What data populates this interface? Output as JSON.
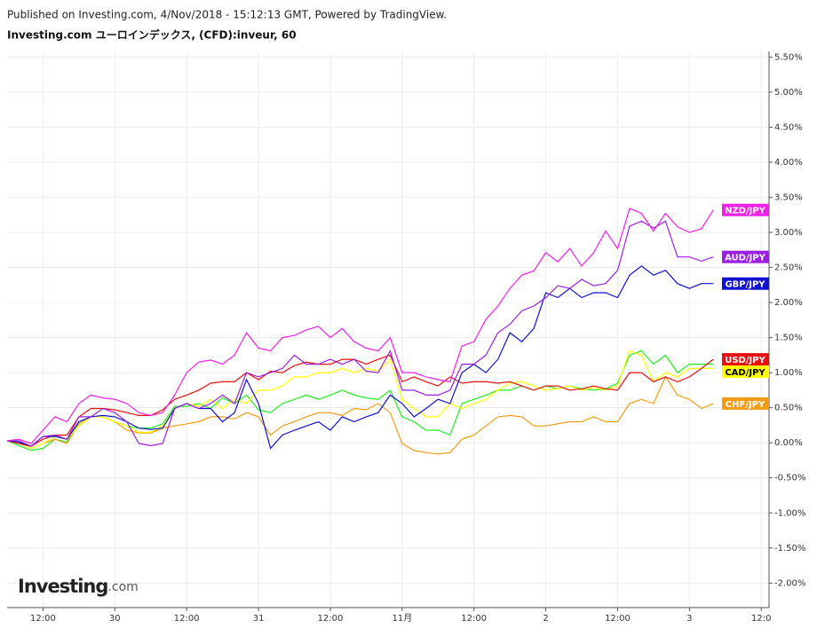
{
  "header": "Published on Investing.com, 4/Nov/2018 - 15:12:13 GMT, Powered by TradingView.",
  "logo": {
    "name": "Investing",
    "suffix": ".com"
  },
  "chart_data": {
    "type": "line",
    "title": "Investing.com ユーロインデックス, (CFD):inveur, 60",
    "x": [
      0,
      2,
      4,
      6,
      8,
      10,
      12,
      14,
      16,
      18,
      20,
      22,
      24,
      26,
      28,
      30,
      32,
      34,
      36,
      38,
      40,
      42,
      44,
      46,
      48,
      50,
      52,
      54,
      56,
      58,
      60,
      62,
      64,
      66,
      68,
      70,
      72,
      74,
      76,
      78,
      80,
      82,
      84,
      86,
      88,
      90,
      92,
      94,
      96,
      98,
      100,
      102,
      104,
      106,
      108,
      110,
      112,
      114,
      116,
      118
    ],
    "xlim": [
      0,
      127.3
    ],
    "xticks": [
      {
        "value": 6,
        "label": "12:00"
      },
      {
        "value": 18,
        "label": "30"
      },
      {
        "value": 30,
        "label": "12:00"
      },
      {
        "value": 42,
        "label": "31"
      },
      {
        "value": 54,
        "label": "12:00"
      },
      {
        "value": 66,
        "label": "11月"
      },
      {
        "value": 78,
        "label": "12:00"
      },
      {
        "value": 90,
        "label": "2"
      },
      {
        "value": 102,
        "label": "12:00"
      },
      {
        "value": 114,
        "label": "3"
      },
      {
        "value": 126,
        "label": "12:0"
      }
    ],
    "ylim": [
      -2.35,
      5.58
    ],
    "yticks": [
      {
        "value": 5.5,
        "label": "5.50%"
      },
      {
        "value": 5.0,
        "label": "5.00%"
      },
      {
        "value": 4.5,
        "label": "4.50%"
      },
      {
        "value": 4.0,
        "label": "4.00%"
      },
      {
        "value": 3.5,
        "label": "3.50%"
      },
      {
        "value": 3.0,
        "label": "3.00%"
      },
      {
        "value": 2.5,
        "label": "2.50%"
      },
      {
        "value": 2.0,
        "label": "2.00%"
      },
      {
        "value": 1.5,
        "label": "1.50%"
      },
      {
        "value": 1.0,
        "label": "1.00%"
      },
      {
        "value": 0.5,
        "label": "0.50%"
      },
      {
        "value": 0,
        "label": "0.00%"
      },
      {
        "value": -0.5,
        "label": "-0.50%"
      },
      {
        "value": -1.0,
        "label": "-1.00%"
      },
      {
        "value": -1.5,
        "label": "-1.50%"
      },
      {
        "value": -2.0,
        "label": "-2.00%"
      }
    ],
    "grid": true,
    "series": [
      {
        "color": "#22ee22",
        "values": [
          0.03,
          -0.04,
          -0.11,
          -0.08,
          0.05,
          0.01,
          0.3,
          0.37,
          0.37,
          0.3,
          0.24,
          0.21,
          0.21,
          0.27,
          0.52,
          0.52,
          0.56,
          0.49,
          0.64,
          0.56,
          0.68,
          0.47,
          0.43,
          0.56,
          0.62,
          0.68,
          0.62,
          0.68,
          0.75,
          0.68,
          0.64,
          0.62,
          0.75,
          0.37,
          0.3,
          0.18,
          0.18,
          0.11,
          0.56,
          0.62,
          0.68,
          0.75,
          0.75,
          0.81,
          0.75,
          0.81,
          0.77,
          0.81,
          0.77,
          0.75,
          0.77,
          0.85,
          1.25,
          1.31,
          1.12,
          1.25,
          1.0,
          1.12,
          1.12,
          1.12
        ]
      },
      {
        "name": "CHF/JPY",
        "color": "#f39c12",
        "values": [
          0.03,
          -0.01,
          -0.08,
          -0.01,
          0.05,
          -0.01,
          0.27,
          0.37,
          0.37,
          0.3,
          0.18,
          0.14,
          0.14,
          0.21,
          0.24,
          0.27,
          0.3,
          0.37,
          0.37,
          0.34,
          0.43,
          0.37,
          0.11,
          0.24,
          0.3,
          0.37,
          0.43,
          0.43,
          0.39,
          0.49,
          0.47,
          0.56,
          0.43,
          -0.01,
          -0.11,
          -0.14,
          -0.16,
          -0.14,
          0.05,
          0.11,
          0.24,
          0.37,
          0.39,
          0.37,
          0.24,
          0.24,
          0.27,
          0.3,
          0.3,
          0.37,
          0.3,
          0.3,
          0.56,
          0.62,
          0.56,
          0.94,
          0.68,
          0.62,
          0.49,
          0.56
        ]
      },
      {
        "name": "CAD/JPY",
        "color": "#ffff00",
        "values": [
          0.03,
          -0.01,
          -0.08,
          -0.01,
          0.09,
          0.05,
          0.24,
          0.37,
          0.37,
          0.3,
          0.24,
          0.15,
          0.15,
          0.24,
          0.49,
          0.56,
          0.52,
          0.62,
          0.49,
          0.62,
          0.56,
          0.75,
          0.75,
          0.81,
          0.94,
          0.94,
          1.0,
          1.0,
          1.06,
          1.0,
          1.06,
          1.02,
          1.19,
          0.62,
          0.49,
          0.37,
          0.37,
          0.56,
          0.49,
          0.56,
          0.62,
          0.75,
          0.85,
          0.87,
          0.81,
          0.75,
          0.77,
          0.81,
          0.75,
          0.79,
          0.75,
          0.81,
          1.31,
          1.25,
          0.87,
          1.0,
          0.94,
          1.06,
          1.06,
          1.06
        ]
      },
      {
        "name": "USD/JPY",
        "color": "#e81010",
        "values": [
          0.03,
          -0.01,
          -0.05,
          0.05,
          0.11,
          0.11,
          0.37,
          0.49,
          0.49,
          0.47,
          0.43,
          0.39,
          0.39,
          0.47,
          0.62,
          0.68,
          0.75,
          0.85,
          0.87,
          0.87,
          1.0,
          0.9,
          1.02,
          1.0,
          1.1,
          1.15,
          1.12,
          1.12,
          1.19,
          1.19,
          1.12,
          1.19,
          1.25,
          0.87,
          0.94,
          0.87,
          0.81,
          0.94,
          0.85,
          0.87,
          0.87,
          0.85,
          0.87,
          0.81,
          0.75,
          0.81,
          0.81,
          0.75,
          0.77,
          0.81,
          0.77,
          0.75,
          1.0,
          1.0,
          0.87,
          0.94,
          0.87,
          0.94,
          1.06,
          1.19
        ]
      },
      {
        "name": "GBP/JPY",
        "color": "#1010d0",
        "values": [
          0.03,
          0.01,
          -0.05,
          0.09,
          0.09,
          0.05,
          0.3,
          0.37,
          0.39,
          0.37,
          0.3,
          0.21,
          0.19,
          0.21,
          0.49,
          0.56,
          0.49,
          0.49,
          0.3,
          0.43,
          0.9,
          0.56,
          -0.08,
          0.11,
          0.18,
          0.24,
          0.3,
          0.18,
          0.37,
          0.3,
          0.37,
          0.43,
          0.68,
          0.56,
          0.37,
          0.49,
          0.62,
          0.56,
          1.0,
          1.12,
          1.0,
          1.19,
          1.57,
          1.44,
          1.63,
          2.14,
          2.07,
          2.2,
          2.07,
          2.14,
          2.14,
          2.07,
          2.39,
          2.52,
          2.39,
          2.46,
          2.27,
          2.2,
          2.27,
          2.27
        ]
      },
      {
        "name": "AUD/JPY",
        "color": "#9b1fe0",
        "values": [
          0.03,
          0.03,
          -0.05,
          0.09,
          0.11,
          0.05,
          0.37,
          0.37,
          0.49,
          0.43,
          0.3,
          -0.01,
          -0.04,
          -0.01,
          0.49,
          0.56,
          0.49,
          0.56,
          0.68,
          0.56,
          1.0,
          0.94,
          1.0,
          1.06,
          1.25,
          1.12,
          1.12,
          1.19,
          1.12,
          1.19,
          1.02,
          1.0,
          1.31,
          0.75,
          0.75,
          0.68,
          0.68,
          0.75,
          1.12,
          1.12,
          1.25,
          1.57,
          1.69,
          1.88,
          1.95,
          2.07,
          2.24,
          2.2,
          2.33,
          2.24,
          2.27,
          2.46,
          3.09,
          3.16,
          3.06,
          3.16,
          2.65,
          2.65,
          2.59,
          2.65
        ]
      },
      {
        "name": "NZD/JPY",
        "color": "#f020e8",
        "values": [
          0.03,
          0.05,
          -0.01,
          0.18,
          0.37,
          0.3,
          0.56,
          0.68,
          0.64,
          0.62,
          0.56,
          0.43,
          0.39,
          0.43,
          0.68,
          1.0,
          1.15,
          1.18,
          1.12,
          1.25,
          1.57,
          1.35,
          1.31,
          1.5,
          1.53,
          1.61,
          1.66,
          1.5,
          1.63,
          1.44,
          1.35,
          1.31,
          1.5,
          1.0,
          1.0,
          0.94,
          0.9,
          0.87,
          1.38,
          1.44,
          1.76,
          1.95,
          2.2,
          2.39,
          2.45,
          2.71,
          2.58,
          2.77,
          2.52,
          2.71,
          3.02,
          2.77,
          3.34,
          3.27,
          3.02,
          3.27,
          3.08,
          3.0,
          3.05,
          3.32
        ]
      }
    ]
  }
}
